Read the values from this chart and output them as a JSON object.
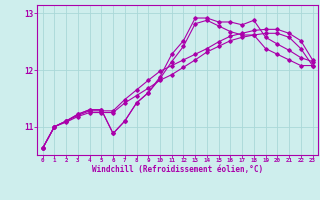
{
  "xlabel": "Windchill (Refroidissement éolien,°C)",
  "background_color": "#ceeeed",
  "line_color": "#aa00aa",
  "grid_color": "#aad8d8",
  "xlim": [
    -0.5,
    23.5
  ],
  "ylim": [
    10.5,
    13.15
  ],
  "yticks": [
    11,
    12,
    13
  ],
  "xticks": [
    0,
    1,
    2,
    3,
    4,
    5,
    6,
    7,
    8,
    9,
    10,
    11,
    12,
    13,
    14,
    15,
    16,
    17,
    18,
    19,
    20,
    21,
    22,
    23
  ],
  "line1_x": [
    0,
    1,
    2,
    3,
    4,
    5,
    6,
    7,
    8,
    9,
    10,
    11,
    12,
    13,
    14,
    15,
    16,
    17,
    18,
    19,
    20,
    21,
    22,
    23
  ],
  "line1_y": [
    10.62,
    11.0,
    11.1,
    11.22,
    11.3,
    11.3,
    10.88,
    11.1,
    11.42,
    11.6,
    11.88,
    12.28,
    12.52,
    12.92,
    12.92,
    12.85,
    12.85,
    12.8,
    12.88,
    12.58,
    12.46,
    12.35,
    12.22,
    12.15
  ],
  "line2_x": [
    0,
    1,
    2,
    3,
    4,
    5,
    6,
    7,
    8,
    9,
    10,
    11,
    12,
    13,
    14,
    15,
    16,
    17,
    18,
    19,
    20,
    21,
    22,
    23
  ],
  "line2_y": [
    10.62,
    11.0,
    11.1,
    11.22,
    11.3,
    11.3,
    10.88,
    11.1,
    11.42,
    11.6,
    11.85,
    12.15,
    12.42,
    12.82,
    12.88,
    12.78,
    12.68,
    12.62,
    12.62,
    12.38,
    12.28,
    12.18,
    12.08,
    12.08
  ],
  "line3_x": [
    0,
    1,
    2,
    3,
    4,
    5,
    6,
    7,
    8,
    9,
    10,
    11,
    12,
    13,
    14,
    15,
    16,
    17,
    18,
    19,
    20,
    21,
    22,
    23
  ],
  "line3_y": [
    10.62,
    11.0,
    11.1,
    11.2,
    11.28,
    11.28,
    11.28,
    11.48,
    11.65,
    11.82,
    11.98,
    12.08,
    12.18,
    12.28,
    12.38,
    12.5,
    12.6,
    12.65,
    12.7,
    12.72,
    12.72,
    12.65,
    12.52,
    12.18
  ],
  "line4_x": [
    0,
    1,
    2,
    3,
    4,
    5,
    6,
    7,
    8,
    9,
    10,
    11,
    12,
    13,
    14,
    15,
    16,
    17,
    18,
    19,
    20,
    21,
    22,
    23
  ],
  "line4_y": [
    10.62,
    11.0,
    11.08,
    11.18,
    11.25,
    11.25,
    11.25,
    11.42,
    11.55,
    11.68,
    11.82,
    11.92,
    12.05,
    12.18,
    12.32,
    12.42,
    12.52,
    12.58,
    12.62,
    12.65,
    12.65,
    12.58,
    12.38,
    12.08
  ]
}
